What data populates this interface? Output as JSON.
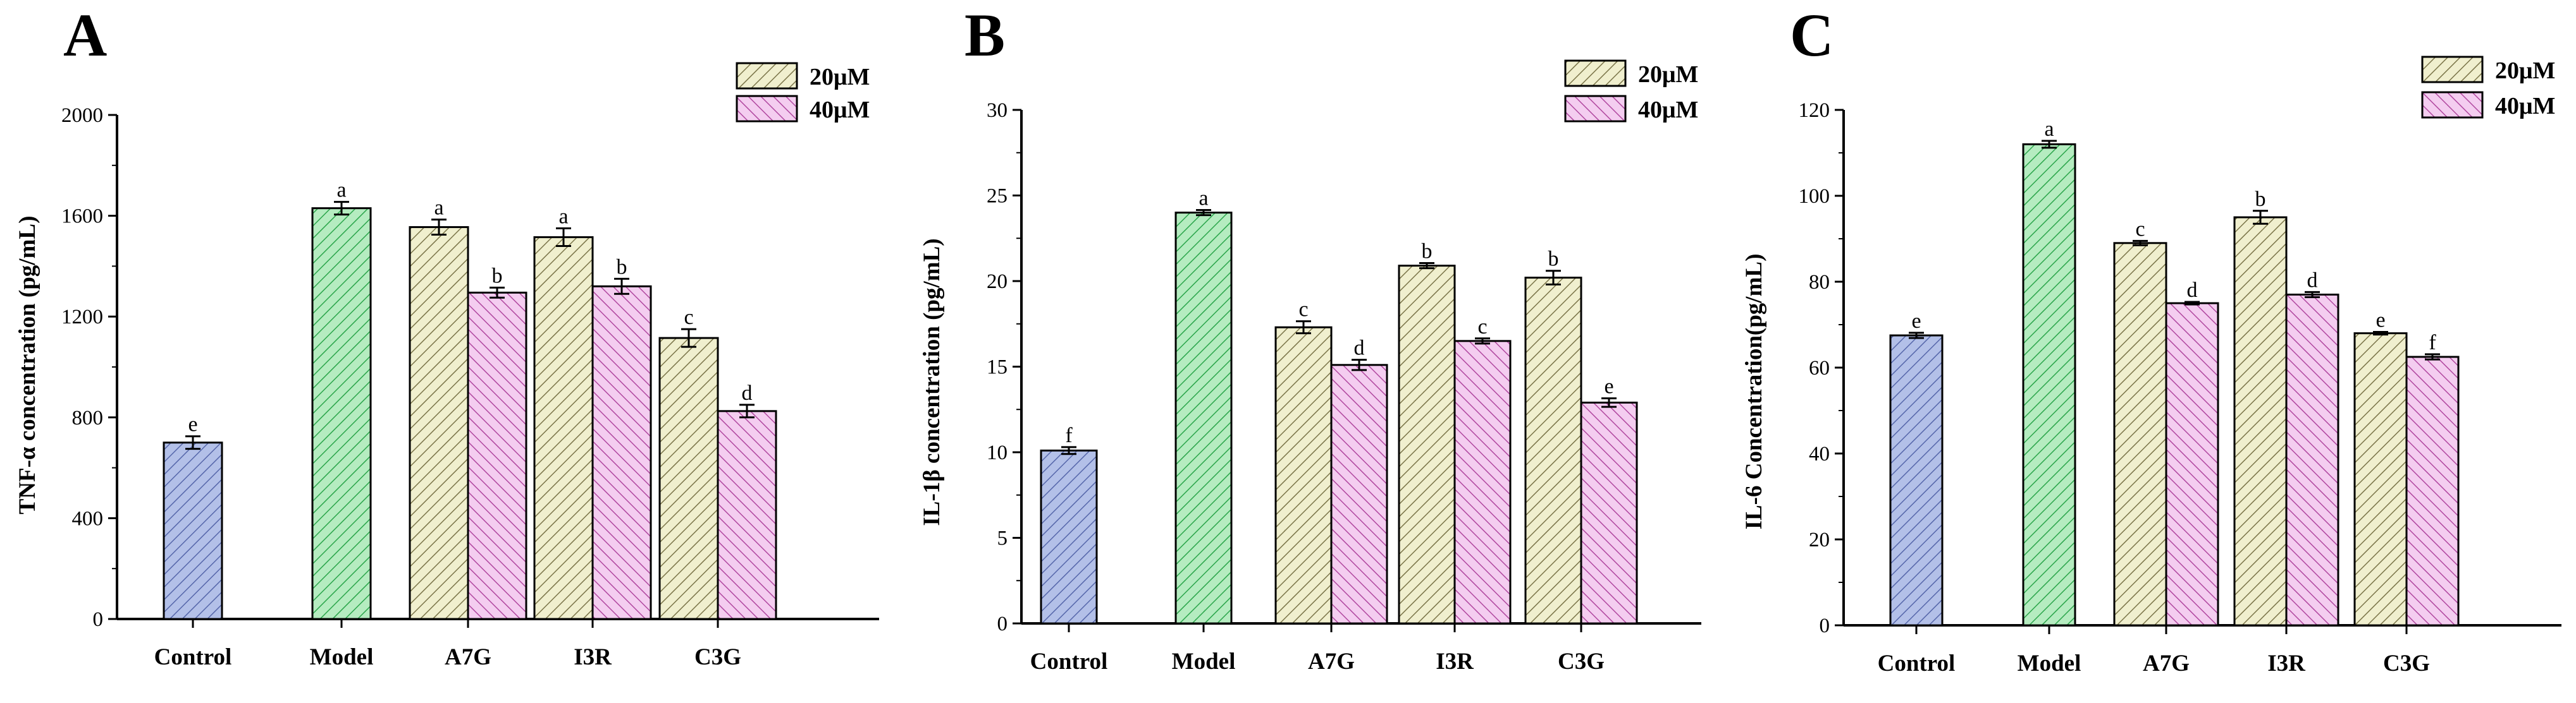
{
  "figure": {
    "colors": {
      "control": "#b3c0e8",
      "control_hatch": "#5566aa",
      "model": "#b5ecc0",
      "model_hatch": "#2aa54a",
      "conc20": "#f0efce",
      "conc20_hatch": "#7a7448",
      "conc40": "#f4cdf0",
      "conc40_hatch": "#b0479f"
    }
  },
  "chart_data": [
    {
      "panel": "A",
      "type": "bar",
      "title": "",
      "xlabel": "",
      "ylabel": "TNF-α concentration (pg/mL)",
      "ylim": [
        0,
        2000
      ],
      "yticks": [
        "0",
        "400",
        "800",
        "1200",
        "1600",
        "2000"
      ],
      "categories": [
        "Control",
        "Model",
        "A7G",
        "I3R",
        "C3G"
      ],
      "legend": [
        "20μM",
        "40μM"
      ],
      "legend_position": "top-right",
      "bars": [
        {
          "category": "Control",
          "series": "Control",
          "value": 700,
          "error": 25,
          "sig": "e"
        },
        {
          "category": "Model",
          "series": "Model",
          "value": 1630,
          "error": 25,
          "sig": "a"
        },
        {
          "category": "A7G",
          "series": "20μM",
          "value": 1555,
          "error": 30,
          "sig": "a"
        },
        {
          "category": "A7G",
          "series": "40μM",
          "value": 1295,
          "error": 20,
          "sig": "b"
        },
        {
          "category": "I3R",
          "series": "20μM",
          "value": 1515,
          "error": 35,
          "sig": "a"
        },
        {
          "category": "I3R",
          "series": "40μM",
          "value": 1320,
          "error": 30,
          "sig": "b"
        },
        {
          "category": "C3G",
          "series": "20μM",
          "value": 1115,
          "error": 35,
          "sig": "c"
        },
        {
          "category": "C3G",
          "series": "40μM",
          "value": 825,
          "error": 25,
          "sig": "d"
        }
      ]
    },
    {
      "panel": "B",
      "type": "bar",
      "title": "",
      "xlabel": "",
      "ylabel": "IL-1β concentration (pg/mL)",
      "ylim": [
        0,
        30
      ],
      "yticks": [
        "0",
        "5",
        "10",
        "15",
        "20",
        "25",
        "30"
      ],
      "categories": [
        "Control",
        "Model",
        "A7G",
        "I3R",
        "C3G"
      ],
      "legend": [
        "20μM",
        "40μM"
      ],
      "legend_position": "top-right",
      "bars": [
        {
          "category": "Control",
          "series": "Control",
          "value": 10.1,
          "error": 0.2,
          "sig": "f"
        },
        {
          "category": "Model",
          "series": "Model",
          "value": 24.0,
          "error": 0.15,
          "sig": "a"
        },
        {
          "category": "A7G",
          "series": "20μM",
          "value": 17.3,
          "error": 0.35,
          "sig": "c"
        },
        {
          "category": "A7G",
          "series": "40μM",
          "value": 15.1,
          "error": 0.3,
          "sig": "d"
        },
        {
          "category": "I3R",
          "series": "20μM",
          "value": 20.9,
          "error": 0.15,
          "sig": "b"
        },
        {
          "category": "I3R",
          "series": "40μM",
          "value": 16.5,
          "error": 0.15,
          "sig": "c"
        },
        {
          "category": "C3G",
          "series": "20μM",
          "value": 20.2,
          "error": 0.4,
          "sig": "b"
        },
        {
          "category": "C3G",
          "series": "40μM",
          "value": 12.9,
          "error": 0.25,
          "sig": "e"
        }
      ]
    },
    {
      "panel": "C",
      "type": "bar",
      "title": "",
      "xlabel": "",
      "ylabel": "IL-6 Concentration(pg/mL)",
      "ylim": [
        0,
        120
      ],
      "yticks": [
        "0",
        "20",
        "40",
        "60",
        "80",
        "100",
        "120"
      ],
      "categories": [
        "Control",
        "Model",
        "A7G",
        "I3R",
        "C3G"
      ],
      "legend": [
        "20μM",
        "40μM"
      ],
      "legend_position": "top-right",
      "bars": [
        {
          "category": "Control",
          "series": "Control",
          "value": 67.5,
          "error": 0.6,
          "sig": "e"
        },
        {
          "category": "Model",
          "series": "Model",
          "value": 112,
          "error": 0.8,
          "sig": "a"
        },
        {
          "category": "A7G",
          "series": "20μM",
          "value": 89,
          "error": 0.5,
          "sig": "c"
        },
        {
          "category": "A7G",
          "series": "40μM",
          "value": 75,
          "error": 0.3,
          "sig": "d"
        },
        {
          "category": "I3R",
          "series": "20μM",
          "value": 95,
          "error": 1.5,
          "sig": "b"
        },
        {
          "category": "I3R",
          "series": "40μM",
          "value": 77,
          "error": 0.6,
          "sig": "d"
        },
        {
          "category": "C3G",
          "series": "20μM",
          "value": 68,
          "error": 0.3,
          "sig": "e"
        },
        {
          "category": "C3G",
          "series": "40μM",
          "value": 62.5,
          "error": 0.6,
          "sig": "f"
        }
      ]
    }
  ]
}
